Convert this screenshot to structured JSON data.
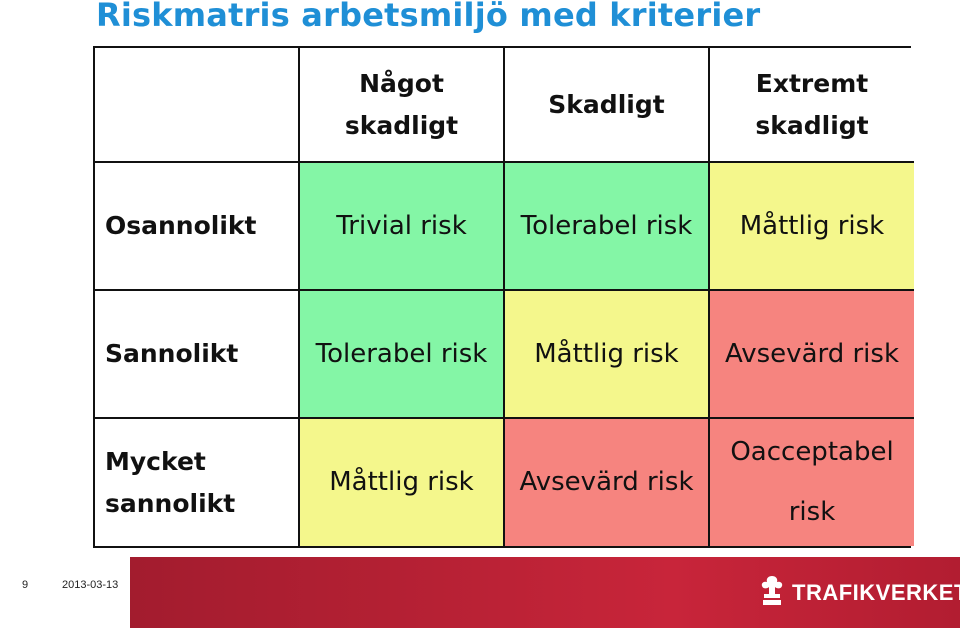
{
  "title": "Riskmatris arbetsmiljö med kriterier",
  "columns": [
    "Något skadligt",
    "Skadligt",
    "Extremt skadligt"
  ],
  "rows": [
    {
      "label": "Osannolikt",
      "cells": [
        "Trivial risk",
        "Tolerabel risk",
        "Måttlig risk"
      ]
    },
    {
      "label": "Sannolikt",
      "cells": [
        "Tolerabel risk",
        "Måttlig risk",
        "Avsevärd risk"
      ]
    },
    {
      "label": "Mycket sannolikt",
      "cells": [
        "Måttlig risk",
        "Avsevärd risk",
        "Oacceptabel risk"
      ]
    }
  ],
  "colors": {
    "title": "#1f8fd6",
    "green": "#84f6a6",
    "yellow": "#f4f78c",
    "red": "#f6847f",
    "footer": "#b32033"
  },
  "footer": {
    "page_number": "9",
    "date": "2013-03-13",
    "logo_text": "TRAFIKVERKET",
    "logo_icon": "trafikverket-logo-icon"
  }
}
